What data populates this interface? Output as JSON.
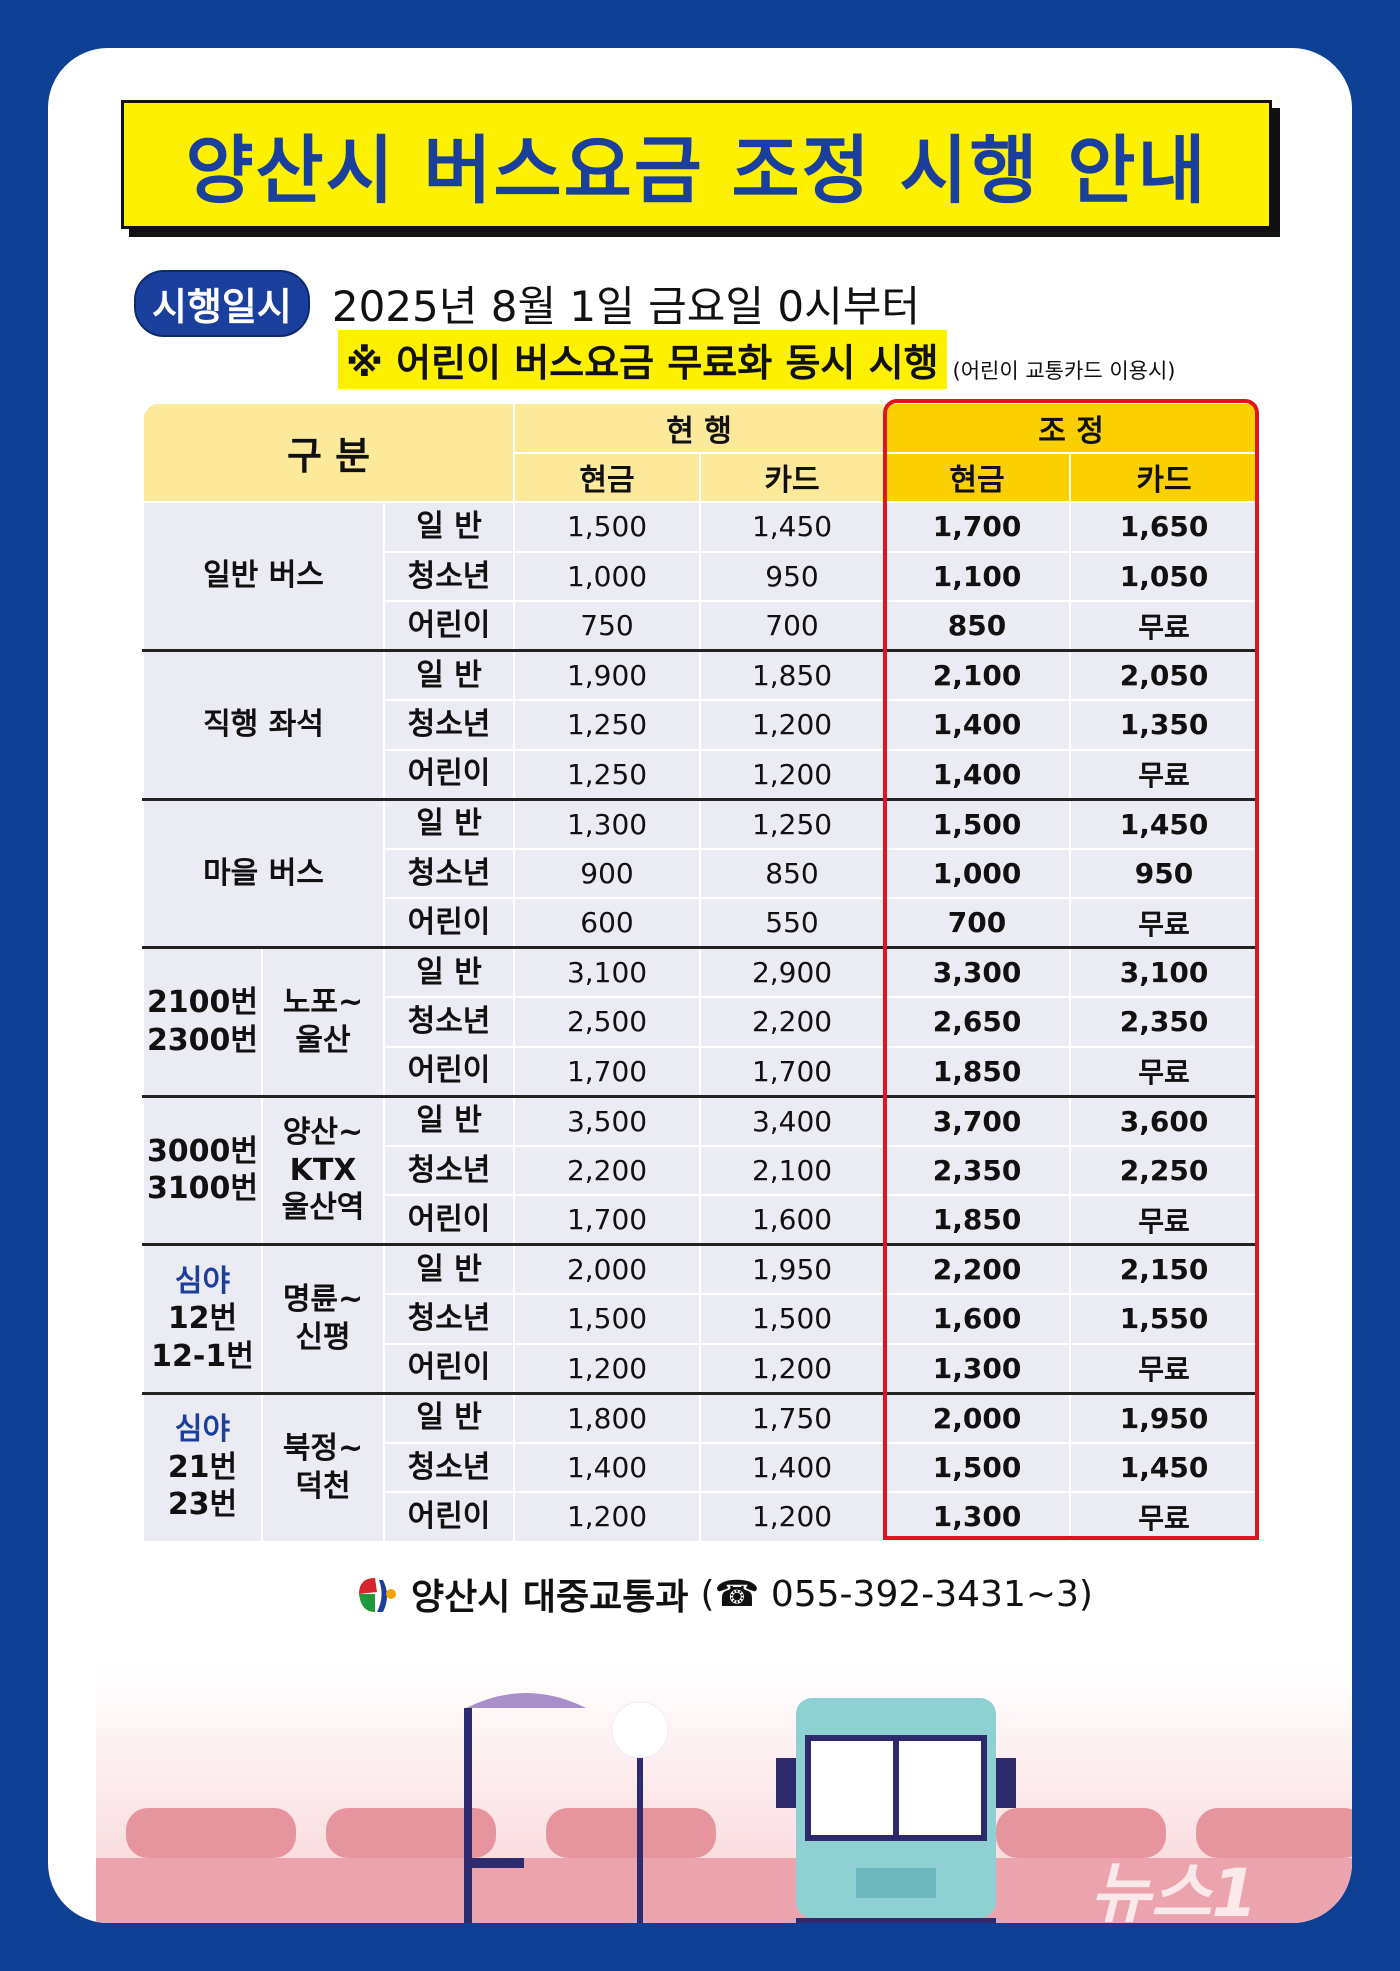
{
  "title": "양산시 버스요금 조정 시행 안내",
  "schedule": {
    "badge": "시행일시",
    "date": "2025년 8월 1일 금요일 0시부터",
    "note": "※ 어린이 버스요금 무료화 동시 시행",
    "note_sub": "(어린이 교통카드 이용시)"
  },
  "table": {
    "header": {
      "category": "구 분",
      "current": "현 행",
      "adjusted": "조 정",
      "cash": "현금",
      "card": "카드"
    },
    "groups": [
      {
        "label": [
          "일반 버스"
        ],
        "rows": [
          [
            "일 반",
            "1,500",
            "1,450",
            "1,700",
            "1,650"
          ],
          [
            "청소년",
            "1,000",
            "950",
            "1,100",
            "1,050"
          ],
          [
            "어린이",
            "750",
            "700",
            "850",
            "무료"
          ]
        ]
      },
      {
        "label": [
          "직행 좌석"
        ],
        "rows": [
          [
            "일 반",
            "1,900",
            "1,850",
            "2,100",
            "2,050"
          ],
          [
            "청소년",
            "1,250",
            "1,200",
            "1,400",
            "1,350"
          ],
          [
            "어린이",
            "1,250",
            "1,200",
            "1,400",
            "무료"
          ]
        ]
      },
      {
        "label": [
          "마을 버스"
        ],
        "rows": [
          [
            "일 반",
            "1,300",
            "1,250",
            "1,500",
            "1,450"
          ],
          [
            "청소년",
            "900",
            "850",
            "1,000",
            "950"
          ],
          [
            "어린이",
            "600",
            "550",
            "700",
            "무료"
          ]
        ]
      },
      {
        "label": [
          "2100번",
          "2300번"
        ],
        "route": [
          "노포~",
          "울산"
        ],
        "rows": [
          [
            "일 반",
            "3,100",
            "2,900",
            "3,300",
            "3,100"
          ],
          [
            "청소년",
            "2,500",
            "2,200",
            "2,650",
            "2,350"
          ],
          [
            "어린이",
            "1,700",
            "1,700",
            "1,850",
            "무료"
          ]
        ]
      },
      {
        "label": [
          "3000번",
          "3100번"
        ],
        "route": [
          "양산~",
          "KTX",
          "울산역"
        ],
        "rows": [
          [
            "일 반",
            "3,500",
            "3,400",
            "3,700",
            "3,600"
          ],
          [
            "청소년",
            "2,200",
            "2,100",
            "2,350",
            "2,250"
          ],
          [
            "어린이",
            "1,700",
            "1,600",
            "1,850",
            "무료"
          ]
        ]
      },
      {
        "night": "심야",
        "label": [
          "12번",
          "12-1번"
        ],
        "route": [
          "명륜~",
          "신평"
        ],
        "rows": [
          [
            "일 반",
            "2,000",
            "1,950",
            "2,200",
            "2,150"
          ],
          [
            "청소년",
            "1,500",
            "1,500",
            "1,600",
            "1,550"
          ],
          [
            "어린이",
            "1,200",
            "1,200",
            "1,300",
            "무료"
          ]
        ]
      },
      {
        "night": "심야",
        "label": [
          "21번",
          "23번"
        ],
        "route": [
          "북정~",
          "덕천"
        ],
        "rows": [
          [
            "일 반",
            "1,800",
            "1,750",
            "2,000",
            "1,950"
          ],
          [
            "청소년",
            "1,400",
            "1,400",
            "1,500",
            "1,450"
          ],
          [
            "어린이",
            "1,200",
            "1,200",
            "1,300",
            "무료"
          ]
        ]
      }
    ]
  },
  "footer": {
    "org": "양산시 대중교통과",
    "phone": "(☎ 055-392-3431~3)"
  },
  "watermark": "뉴스1",
  "colors": {
    "border": "#0d3f94",
    "title_bg": "#fdf000",
    "title_text": "#1b3f9c",
    "highlight": "#e0141e"
  }
}
